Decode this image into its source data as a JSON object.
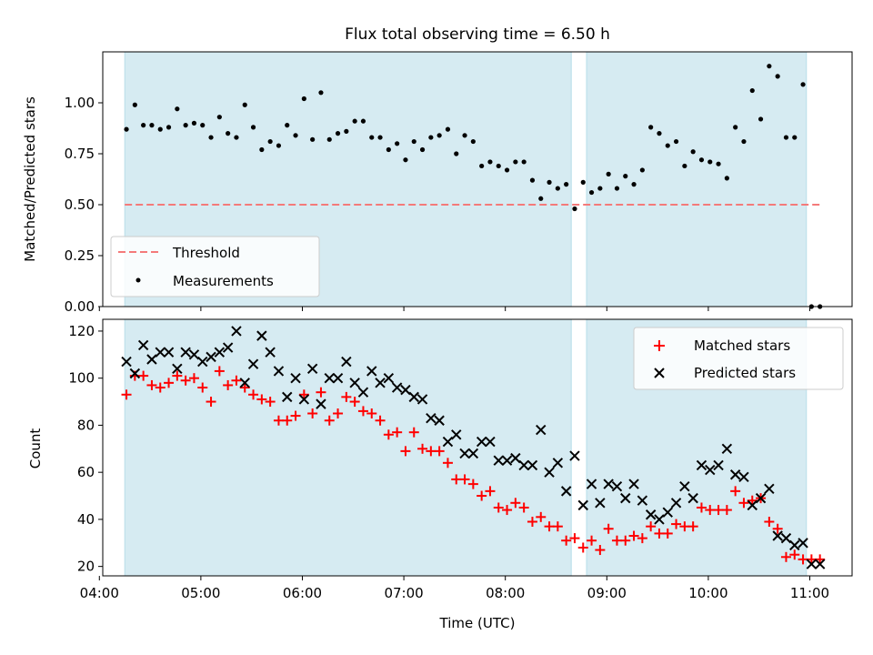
{
  "figure": {
    "title": "Flux total observing time = 6.50 h"
  },
  "chart_data": [
    {
      "type": "scatter",
      "panel": "top",
      "ylabel": "Matched/Predicted stars",
      "xlabel": "",
      "xlim": [
        "04:02",
        "11:25"
      ],
      "ylim": [
        0,
        1.25
      ],
      "yticks": [
        "0.00",
        "0.25",
        "0.50",
        "0.75",
        "1.00"
      ],
      "ytick_values": [
        0,
        0.25,
        0.5,
        0.75,
        1.0
      ],
      "xticks_labels_visible": false,
      "grid": false,
      "legend": {
        "placement": "lower-left",
        "entries": [
          "Threshold",
          "Measurements"
        ]
      },
      "shaded_intervals": [
        [
          "04:15",
          "08:39"
        ],
        [
          "08:48",
          "10:58"
        ]
      ],
      "threshold": {
        "name": "Threshold",
        "value": 0.5,
        "x_range": [
          "04:15",
          "11:06"
        ],
        "color": "#f47a7a",
        "style": "dashed"
      },
      "series": [
        {
          "name": "Measurements",
          "color": "#000000",
          "marker": "dot",
          "x": [
            "04:16",
            "04:21",
            "04:26",
            "04:31",
            "04:36",
            "04:41",
            "04:46",
            "04:51",
            "04:56",
            "05:01",
            "05:06",
            "05:11",
            "05:16",
            "05:21",
            "05:26",
            "05:31",
            "05:36",
            "05:41",
            "05:46",
            "05:51",
            "05:56",
            "06:01",
            "06:06",
            "06:11",
            "06:16",
            "06:21",
            "06:26",
            "06:31",
            "06:36",
            "06:41",
            "06:46",
            "06:51",
            "06:56",
            "07:01",
            "07:06",
            "07:11",
            "07:16",
            "07:21",
            "07:26",
            "07:31",
            "07:36",
            "07:41",
            "07:46",
            "07:51",
            "07:56",
            "08:01",
            "08:06",
            "08:11",
            "08:16",
            "08:21",
            "08:26",
            "08:31",
            "08:36",
            "08:41",
            "08:46",
            "08:51",
            "08:56",
            "09:01",
            "09:06",
            "09:11",
            "09:16",
            "09:21",
            "09:26",
            "09:31",
            "09:36",
            "09:41",
            "09:46",
            "09:51",
            "09:56",
            "10:01",
            "10:06",
            "10:11",
            "10:16",
            "10:21",
            "10:26",
            "10:31",
            "10:36",
            "10:41",
            "10:46",
            "10:51",
            "10:56",
            "11:01",
            "11:06"
          ],
          "y": [
            0.87,
            0.99,
            0.89,
            0.89,
            0.87,
            0.88,
            0.97,
            0.89,
            0.9,
            0.89,
            0.83,
            0.93,
            0.85,
            0.83,
            0.99,
            0.88,
            0.77,
            0.81,
            0.79,
            0.89,
            0.84,
            1.02,
            0.82,
            1.05,
            0.82,
            0.85,
            0.86,
            0.91,
            0.91,
            0.83,
            0.83,
            0.77,
            0.8,
            0.72,
            0.81,
            0.77,
            0.83,
            0.84,
            0.87,
            0.75,
            0.84,
            0.81,
            0.69,
            0.71,
            0.69,
            0.67,
            0.71,
            0.71,
            0.62,
            0.53,
            0.61,
            0.58,
            0.6,
            0.48,
            0.61,
            0.56,
            0.58,
            0.65,
            0.58,
            0.64,
            0.6,
            0.67,
            0.88,
            0.85,
            0.79,
            0.81,
            0.69,
            0.76,
            0.72,
            0.71,
            0.7,
            0.63,
            0.88,
            0.81,
            1.06,
            0.92,
            1.18,
            1.13,
            0.83,
            0.83,
            1.09,
            0.0,
            0.0
          ]
        }
      ]
    },
    {
      "type": "scatter",
      "panel": "bottom",
      "xlabel": "Time (UTC)",
      "ylabel": "Count",
      "xlim": [
        "04:02",
        "11:25"
      ],
      "ylim": [
        16,
        125
      ],
      "xticks": [
        "04:00",
        "05:00",
        "06:00",
        "07:00",
        "08:00",
        "09:00",
        "10:00",
        "11:00"
      ],
      "yticks": [
        "20",
        "40",
        "60",
        "80",
        "100",
        "120"
      ],
      "ytick_values": [
        20,
        40,
        60,
        80,
        100,
        120
      ],
      "grid": false,
      "legend": {
        "placement": "top-right",
        "entries": [
          "Matched stars",
          "Predicted stars"
        ]
      },
      "shaded_intervals": [
        [
          "04:15",
          "08:39"
        ],
        [
          "08:48",
          "10:58"
        ]
      ],
      "x": [
        "04:16",
        "04:21",
        "04:26",
        "04:31",
        "04:36",
        "04:41",
        "04:46",
        "04:51",
        "04:56",
        "05:01",
        "05:06",
        "05:11",
        "05:16",
        "05:21",
        "05:26",
        "05:31",
        "05:36",
        "05:41",
        "05:46",
        "05:51",
        "05:56",
        "06:01",
        "06:06",
        "06:11",
        "06:16",
        "06:21",
        "06:26",
        "06:31",
        "06:36",
        "06:41",
        "06:46",
        "06:51",
        "06:56",
        "07:01",
        "07:06",
        "07:11",
        "07:16",
        "07:21",
        "07:26",
        "07:31",
        "07:36",
        "07:41",
        "07:46",
        "07:51",
        "07:56",
        "08:01",
        "08:06",
        "08:11",
        "08:16",
        "08:21",
        "08:26",
        "08:31",
        "08:36",
        "08:41",
        "08:46",
        "08:51",
        "08:56",
        "09:01",
        "09:06",
        "09:11",
        "09:16",
        "09:21",
        "09:26",
        "09:31",
        "09:36",
        "09:41",
        "09:46",
        "09:51",
        "09:56",
        "10:01",
        "10:06",
        "10:11",
        "10:16",
        "10:21",
        "10:26",
        "10:31",
        "10:36",
        "10:41",
        "10:46",
        "10:51",
        "10:56",
        "11:01",
        "11:06"
      ],
      "series": [
        {
          "name": "Matched stars",
          "color": "#ff0000",
          "marker": "plus",
          "y": [
            93,
            101,
            101,
            97,
            96,
            98,
            101,
            99,
            100,
            96,
            90,
            103,
            97,
            99,
            96,
            93,
            91,
            90,
            82,
            82,
            84,
            93,
            85,
            94,
            82,
            85,
            92,
            90,
            86,
            85,
            82,
            76,
            77,
            69,
            77,
            70,
            69,
            69,
            64,
            57,
            57,
            55,
            50,
            52,
            45,
            44,
            47,
            45,
            39,
            41,
            37,
            37,
            31,
            32,
            28,
            31,
            27,
            36,
            31,
            31,
            33,
            32,
            37,
            34,
            34,
            38,
            37,
            37,
            45,
            44,
            44,
            44,
            52,
            47,
            48,
            49,
            39,
            36,
            24,
            25,
            23,
            23,
            23
          ]
        },
        {
          "name": "Predicted stars",
          "color": "#000000",
          "marker": "x",
          "y": [
            107,
            102,
            114,
            108,
            111,
            111,
            104,
            111,
            110,
            107,
            109,
            111,
            113,
            120,
            98,
            106,
            118,
            111,
            103,
            92,
            100,
            91,
            104,
            89,
            100,
            100,
            107,
            98,
            94,
            103,
            98,
            100,
            96,
            95,
            92,
            91,
            83,
            82,
            73,
            76,
            68,
            68,
            73,
            73,
            65,
            65,
            66,
            63,
            63,
            78,
            60,
            64,
            52,
            67,
            46,
            55,
            47,
            55,
            54,
            49,
            55,
            48,
            42,
            40,
            43,
            47,
            54,
            49,
            63,
            61,
            63,
            70,
            59,
            58,
            46,
            49,
            53,
            33,
            32,
            29,
            30,
            21,
            21
          ]
        }
      ]
    }
  ]
}
